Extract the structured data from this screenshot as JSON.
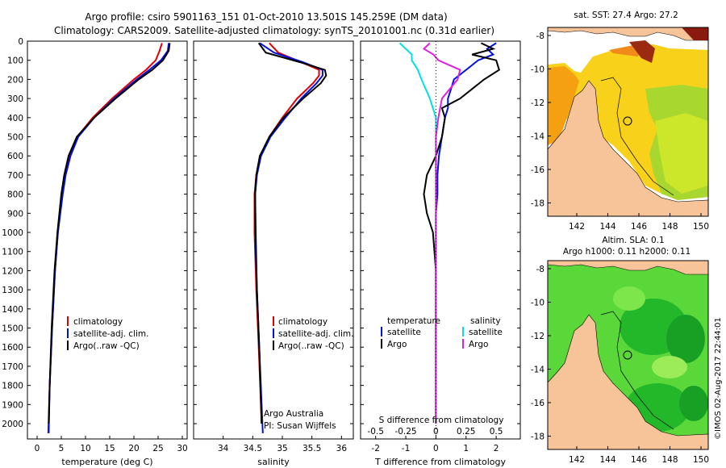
{
  "header": {
    "line1": "Argo profile: csiro 5901163_151 01-Oct-2010 13.501S 145.259E (DM data)",
    "line2": "Climatology: CARS2009. Satellite-adjusted climatology: synTS_20101001.nc (0.31d earlier)"
  },
  "colors": {
    "clim": "#e00000",
    "sat": "#0010e0",
    "argo": "#000000",
    "sal_sat": "#00e0e0",
    "sal_argo": "#e020e0",
    "land": "#f7c49a",
    "warm": "#ffb000",
    "green": "#30c830"
  },
  "depth_axis": {
    "ticks": [
      0,
      100,
      200,
      300,
      400,
      500,
      600,
      700,
      800,
      900,
      1000,
      1100,
      1200,
      1300,
      1400,
      1500,
      1600,
      1700,
      1800,
      1900,
      2000
    ],
    "range": [
      0,
      2080
    ]
  },
  "legends": {
    "temp": {
      "clim": "climatology",
      "sat": "satellite-adj. clim.",
      "argo": "Argo(..raw -QC)"
    },
    "sal": {
      "clim": "climatology",
      "sat": "satellite-adj. clim.",
      "argo": "Argo(..raw -QC)"
    },
    "diff": {
      "temperature": "temperature",
      "salinity": "salinity",
      "t_sat": "satellite",
      "t_argo": "Argo",
      "s_sat": "satellite",
      "s_argo": "Argo"
    }
  },
  "notes": {
    "org": "Argo Australia",
    "pi": "PI: Susan Wijffels"
  },
  "maps": {
    "top_title": "sat. SST: 27.4  Argo: 27.2",
    "bottom_title1": "Altim. SLA: 0.1",
    "bottom_title2": "Argo h1000: 0.11 h2000: 0.11",
    "lat_ticks": [
      "-8",
      "-10",
      "-12",
      "-14",
      "-16",
      "-18"
    ],
    "lon_ticks": [
      "142",
      "144",
      "146",
      "148",
      "150"
    ]
  },
  "footer_stamp": "©IMOS 02-Aug-2017 22:44:01",
  "chart_data": [
    {
      "type": "line",
      "xlabel": "temperature (deg C)",
      "ylabel": "",
      "xlim": [
        -2,
        31
      ],
      "xticks": [
        0,
        5,
        10,
        15,
        20,
        25,
        30
      ],
      "ylim": [
        2080,
        0
      ],
      "series": [
        {
          "name": "climatology",
          "depth": [
            10,
            50,
            100,
            150,
            200,
            300,
            400,
            500,
            600,
            700,
            800,
            1000,
            1200,
            1500,
            1800,
            2050
          ],
          "values": [
            25.8,
            25.3,
            24.5,
            22.5,
            20.0,
            15.5,
            11.5,
            8.3,
            6.8,
            5.8,
            5.2,
            4.3,
            3.7,
            3.1,
            2.6,
            2.3
          ]
        },
        {
          "name": "satellite-adj. clim.",
          "depth": [
            10,
            50,
            100,
            150,
            200,
            300,
            400,
            500,
            600,
            700,
            800,
            1000,
            1200,
            1500,
            1800,
            2050
          ],
          "values": [
            27.2,
            27.0,
            25.6,
            23.2,
            20.6,
            15.9,
            11.8,
            8.5,
            6.9,
            5.9,
            5.3,
            4.3,
            3.7,
            3.1,
            2.6,
            2.4
          ]
        },
        {
          "name": "Argo(..raw -QC)",
          "depth": [
            10,
            50,
            100,
            150,
            200,
            300,
            400,
            500,
            600,
            700,
            800,
            1000,
            1200,
            1500,
            1800,
            2000
          ],
          "values": [
            27.4,
            27.2,
            26.0,
            23.8,
            21.0,
            16.2,
            11.8,
            8.2,
            6.5,
            5.6,
            5.0,
            4.2,
            3.6,
            3.0,
            2.6,
            2.4
          ]
        }
      ]
    },
    {
      "type": "line",
      "xlabel": "salinity",
      "ylabel": "",
      "xlim": [
        33.5,
        36.2
      ],
      "xticks": [
        34,
        34.5,
        35,
        35.5,
        36
      ],
      "ylim": [
        2080,
        0
      ],
      "series": [
        {
          "name": "climatology",
          "depth": [
            10,
            60,
            110,
            150,
            180,
            220,
            300,
            400,
            500,
            600,
            700,
            800,
            1000,
            1300,
            1600,
            2000
          ],
          "values": [
            34.78,
            34.93,
            35.32,
            35.62,
            35.62,
            35.52,
            35.25,
            35.0,
            34.78,
            34.63,
            34.56,
            34.53,
            34.53,
            34.56,
            34.6,
            34.65
          ]
        },
        {
          "name": "satellite-adj. clim.",
          "depth": [
            10,
            60,
            110,
            150,
            180,
            220,
            300,
            400,
            500,
            600,
            700,
            800,
            1000,
            1300,
            1600,
            2050
          ],
          "values": [
            34.62,
            34.86,
            35.35,
            35.68,
            35.68,
            35.58,
            35.32,
            35.05,
            34.8,
            34.64,
            34.57,
            34.54,
            34.54,
            34.57,
            34.61,
            34.67
          ]
        },
        {
          "name": "Argo(..raw -QC)",
          "depth": [
            10,
            60,
            110,
            150,
            180,
            220,
            300,
            400,
            500,
            600,
            700,
            800,
            1000,
            1300,
            1600,
            2000
          ],
          "values": [
            34.6,
            34.72,
            35.3,
            35.72,
            35.74,
            35.65,
            35.35,
            35.02,
            34.78,
            34.62,
            34.56,
            34.54,
            34.55,
            34.57,
            34.61,
            34.65
          ]
        }
      ]
    },
    {
      "type": "line",
      "xlabel": "T difference from climatology",
      "xlabel_top": "S difference from climatology",
      "xlim": [
        -2.5,
        2.8
      ],
      "xticks": [
        -2,
        -1,
        0,
        1,
        2
      ],
      "xticks_top": [
        -0.5,
        -0.25,
        0,
        0.25,
        0.5
      ],
      "ylim": [
        2080,
        0
      ],
      "series": [
        {
          "name": "temperature satellite",
          "depth": [
            10,
            40,
            70,
            100,
            150,
            200,
            250,
            300,
            350,
            400,
            500,
            600,
            700,
            800,
            900,
            1000,
            1200,
            1500,
            2000
          ],
          "values": [
            2.0,
            1.7,
            1.9,
            1.4,
            1.0,
            0.6,
            0.5,
            0.4,
            0.4,
            0.3,
            0.2,
            0.1,
            0.05,
            0.05,
            0.0,
            0.0,
            0.0,
            0.0,
            0.0
          ]
        },
        {
          "name": "temperature Argo",
          "depth": [
            10,
            40,
            70,
            100,
            150,
            200,
            250,
            300,
            350,
            400,
            500,
            600,
            700,
            800,
            900,
            1000,
            1200,
            1500,
            2000
          ],
          "values": [
            1.5,
            1.9,
            1.2,
            2.0,
            2.1,
            1.6,
            1.2,
            0.8,
            0.2,
            0.3,
            0.2,
            0.0,
            -0.3,
            -0.4,
            -0.3,
            -0.1,
            0.0,
            0.0,
            0.0
          ]
        },
        {
          "name": "salinity satellite",
          "depth": [
            10,
            40,
            70,
            100,
            150,
            200,
            300,
            400,
            500,
            700,
            1000,
            1200,
            1500,
            2000
          ],
          "values": [
            -0.3,
            -0.25,
            -0.2,
            -0.2,
            -0.15,
            -0.12,
            -0.05,
            0.0,
            0.0,
            0.0,
            0.0,
            0.0,
            0.0,
            0.0
          ]
        },
        {
          "name": "salinity Argo",
          "depth": [
            10,
            40,
            70,
            100,
            150,
            200,
            300,
            400,
            500,
            700,
            1000,
            1200,
            1500,
            2000
          ],
          "values": [
            -0.05,
            -0.1,
            -0.02,
            0.02,
            0.2,
            0.18,
            0.05,
            0.02,
            0.0,
            0.0,
            0.0,
            0.0,
            0.0,
            0.0
          ]
        }
      ]
    }
  ]
}
